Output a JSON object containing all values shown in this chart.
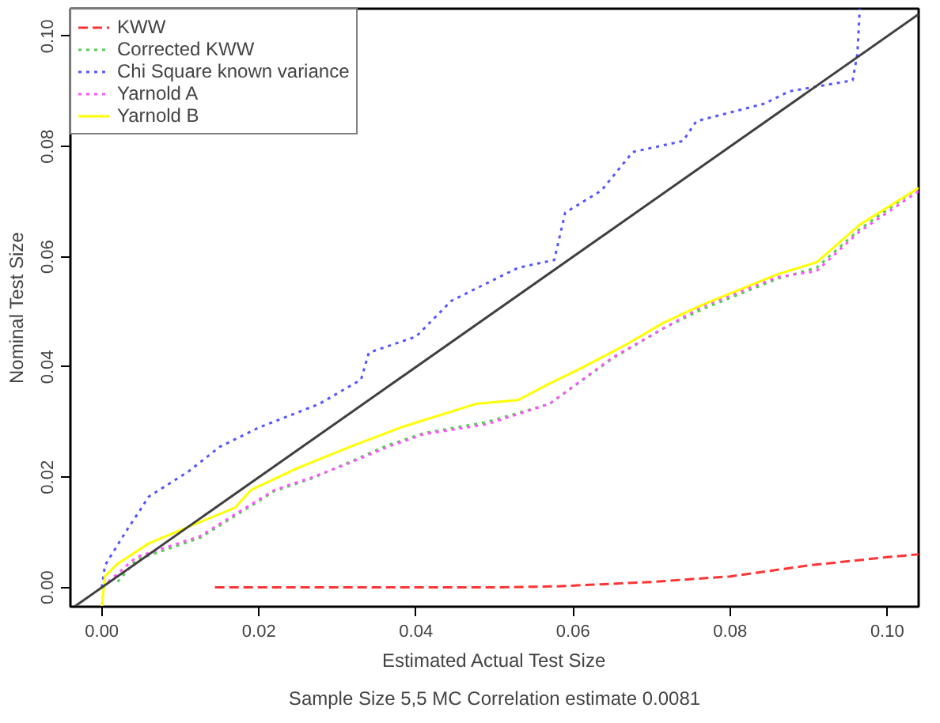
{
  "chart_data": {
    "type": "line",
    "xlabel": "Estimated Actual Test Size",
    "subtitle": "Sample Size 5,5 MC Correlation estimate 0.0081",
    "ylabel": "Nominal Test Size",
    "xlim": [
      -0.004,
      0.104
    ],
    "ylim": [
      -0.0035,
      0.105
    ],
    "xticks": [
      {
        "value": 0,
        "label": "0.00"
      },
      {
        "value": 0.02,
        "label": "0.02"
      },
      {
        "value": 0.04,
        "label": "0.04"
      },
      {
        "value": 0.06,
        "label": "0.06"
      },
      {
        "value": 0.08,
        "label": "0.08"
      },
      {
        "value": 0.1,
        "label": "0.10"
      }
    ],
    "yticks": [
      {
        "value": 0,
        "label": "0.00"
      },
      {
        "value": 0.02,
        "label": "0.02"
      },
      {
        "value": 0.04,
        "label": "0.04"
      },
      {
        "value": 0.06,
        "label": "0.06"
      },
      {
        "value": 0.08,
        "label": "0.08"
      },
      {
        "value": 0.1,
        "label": "0.10"
      }
    ],
    "grid": false,
    "legend": "top left",
    "marker": "none",
    "series": [
      {
        "name": "KWW",
        "color": "#ff3333",
        "line_style": "dashed",
        "x": [
          0.0144,
          0.03,
          0.05,
          0.058,
          0.07,
          0.08,
          0.09,
          0.1,
          0.104
        ],
        "values": [
          0,
          0,
          0,
          0.0002,
          0.001,
          0.002,
          0.004,
          0.0055,
          0.006
        ]
      },
      {
        "name": "Corrected KWW",
        "color": "#55cc55",
        "line_style": "dotted",
        "x": [
          0.002,
          0.0044,
          0.0125,
          0.017,
          0.022,
          0.0268,
          0.0316,
          0.0364,
          0.041,
          0.049,
          0.057,
          0.065,
          0.0715,
          0.0765,
          0.086,
          0.091,
          0.0965,
          0.104
        ],
        "values": [
          0.001,
          0.005,
          0.009,
          0.013,
          0.0175,
          0.0198,
          0.0228,
          0.0258,
          0.028,
          0.03,
          0.0333,
          0.0415,
          0.047,
          0.0505,
          0.056,
          0.058,
          0.065,
          0.0725
        ]
      },
      {
        "name": "Chi Square known variance",
        "color": "#5555ff",
        "line_style": "dotted",
        "x": [
          0,
          0.0004,
          0.003,
          0.006,
          0.011,
          0.015,
          0.02,
          0.0277,
          0.033,
          0.034,
          0.04,
          0.0445,
          0.053,
          0.0576,
          0.059,
          0.0636,
          0.0676,
          0.074,
          0.0757,
          0.0844,
          0.0875,
          0.0956,
          0.0962,
          0.0965
        ],
        "values": [
          0,
          0.004,
          0.01,
          0.0165,
          0.021,
          0.0255,
          0.029,
          0.0333,
          0.0377,
          0.0426,
          0.0455,
          0.052,
          0.058,
          0.0594,
          0.068,
          0.072,
          0.079,
          0.081,
          0.0846,
          0.0878,
          0.09,
          0.092,
          0.0968,
          0.105
        ]
      },
      {
        "name": "Yarnold A",
        "color": "#ff55ff",
        "line_style": "dotted",
        "x": [
          0.0008,
          0.0044,
          0.0125,
          0.017,
          0.022,
          0.0268,
          0.0316,
          0.0364,
          0.041,
          0.049,
          0.057,
          0.065,
          0.0715,
          0.0765,
          0.086,
          0.091,
          0.0965,
          0.104
        ],
        "values": [
          0.001,
          0.0055,
          0.0093,
          0.0133,
          0.0177,
          0.02,
          0.0226,
          0.0255,
          0.0278,
          0.0296,
          0.0333,
          0.0417,
          0.047,
          0.051,
          0.0563,
          0.0574,
          0.0646,
          0.0719
        ]
      },
      {
        "name": "Yarnold B",
        "color": "#ffff00",
        "line_style": "solid",
        "x": [
          0,
          0.0004,
          0.002,
          0.006,
          0.009,
          0.017,
          0.019,
          0.025,
          0.0316,
          0.038,
          0.0476,
          0.053,
          0.057,
          0.0605,
          0.0667,
          0.0715,
          0.0765,
          0.086,
          0.091,
          0.0965,
          0.104
        ],
        "values": [
          -0.0035,
          0.002,
          0.0043,
          0.008,
          0.0098,
          0.0145,
          0.0177,
          0.0217,
          0.0255,
          0.029,
          0.0333,
          0.034,
          0.037,
          0.0394,
          0.044,
          0.048,
          0.0513,
          0.0568,
          0.059,
          0.0658,
          0.0725
        ]
      },
      {
        "color": "#404040",
        "line_style": "solid",
        "x": [
          -0.0035,
          0.104
        ],
        "values": [
          -0.0035,
          0.104
        ]
      }
    ]
  }
}
